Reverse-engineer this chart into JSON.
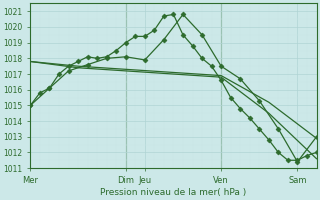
{
  "xlabel": "Pression niveau de la mer( hPa )",
  "ylim": [
    1011,
    1021.5
  ],
  "xlim": [
    0,
    30
  ],
  "yticks": [
    1011,
    1012,
    1013,
    1014,
    1015,
    1016,
    1017,
    1018,
    1019,
    1020,
    1021
  ],
  "xtick_positions": [
    0,
    10,
    12,
    20,
    28
  ],
  "xtick_labels": [
    "Mer",
    "Dim",
    "Jeu",
    "Ven",
    "Sam"
  ],
  "background_color": "#cce8e8",
  "line_color": "#2d6b2d",
  "grid_major_color": "#b0d4d4",
  "grid_minor_color": "#c8e4e4",
  "line1_x": [
    0,
    1,
    2,
    3,
    4,
    5,
    6,
    7,
    8,
    9,
    10,
    11,
    12,
    13,
    14,
    15,
    16,
    17,
    18,
    19,
    20,
    21,
    22,
    23,
    24,
    25,
    26,
    27,
    28,
    29,
    30
  ],
  "line1_y": [
    1015.0,
    1015.8,
    1016.1,
    1017.0,
    1017.5,
    1017.8,
    1018.1,
    1018.0,
    1018.1,
    1018.5,
    1019.0,
    1019.4,
    1019.4,
    1019.8,
    1020.7,
    1020.8,
    1019.5,
    1018.8,
    1018.0,
    1017.5,
    1016.6,
    1015.5,
    1014.8,
    1014.2,
    1013.5,
    1012.8,
    1012.0,
    1011.5,
    1011.5,
    1011.8,
    1012.0
  ],
  "line2_x": [
    0,
    2,
    4,
    6,
    8,
    10,
    12,
    14,
    16,
    18,
    20,
    22,
    24,
    26,
    28,
    30
  ],
  "line2_y": [
    1015.0,
    1016.1,
    1017.2,
    1017.6,
    1018.0,
    1018.1,
    1017.9,
    1019.2,
    1020.8,
    1019.5,
    1017.5,
    1016.7,
    1015.3,
    1013.5,
    1011.4,
    1013.0
  ],
  "line3_x": [
    0,
    5,
    10,
    15,
    20,
    25,
    30
  ],
  "line3_y": [
    1017.8,
    1017.4,
    1017.2,
    1017.0,
    1016.8,
    1014.5,
    1011.6
  ],
  "line4_x": [
    0,
    5,
    10,
    15,
    20,
    25,
    30
  ],
  "line4_y": [
    1017.8,
    1017.5,
    1017.3,
    1017.1,
    1016.9,
    1015.2,
    1012.9
  ],
  "figsize": [
    3.2,
    2.0
  ],
  "dpi": 100
}
